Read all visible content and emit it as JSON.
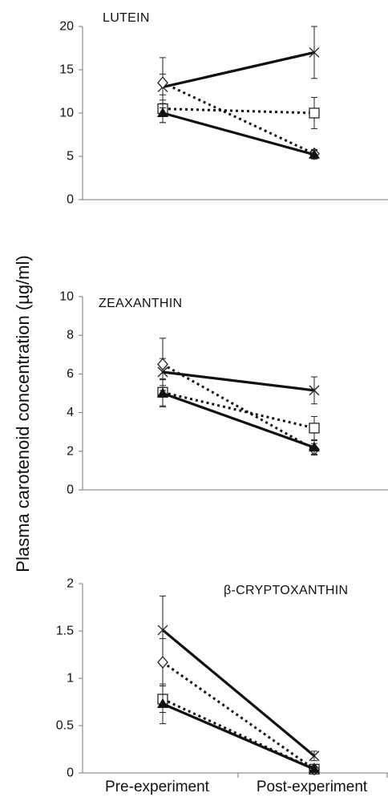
{
  "chart_data": {
    "type": "line",
    "ylabel": "Plasma carotenoid concentration (µg/ml)",
    "categories": [
      "Pre-experiment",
      "Post-experiment"
    ],
    "marker_styles": [
      {
        "marker": "cross",
        "line": "solid"
      },
      {
        "marker": "square-open",
        "line": "dotted"
      },
      {
        "marker": "diamond-open",
        "line": "dotted"
      },
      {
        "marker": "triangle-filled",
        "line": "solid"
      }
    ],
    "panels": [
      {
        "title": "LUTEIN",
        "ylim": [
          0,
          20
        ],
        "yticks": [
          "0",
          "5",
          "10",
          "15",
          "20"
        ],
        "series": [
          {
            "values": [
              13.0,
              17.0
            ],
            "errors": [
              1.5,
              3.0
            ]
          },
          {
            "values": [
              10.5,
              10.0
            ],
            "errors": [
              1.6,
              1.8
            ]
          },
          {
            "values": [
              13.5,
              5.3
            ],
            "errors": [
              2.9,
              0.5
            ]
          },
          {
            "values": [
              10.0,
              5.2
            ],
            "errors": [
              1.1,
              0.5
            ]
          }
        ]
      },
      {
        "title": "ZEAXANTHIN",
        "ylim": [
          0,
          10
        ],
        "yticks": [
          "0",
          "2",
          "4",
          "6",
          "8",
          "10"
        ],
        "series": [
          {
            "values": [
              6.1,
              5.15
            ],
            "errors": [
              0.7,
              0.7
            ]
          },
          {
            "values": [
              5.05,
              3.2
            ],
            "errors": [
              0.7,
              0.6
            ]
          },
          {
            "values": [
              6.5,
              2.1
            ],
            "errors": [
              1.35,
              0.3
            ]
          },
          {
            "values": [
              5.0,
              2.2
            ],
            "errors": [
              0.7,
              0.35
            ]
          }
        ]
      },
      {
        "title": "β-CRYPTOXANTHIN",
        "ylim": [
          0,
          2
        ],
        "yticks": [
          "0",
          "0.5",
          "1",
          "1.5",
          "2"
        ],
        "series": [
          {
            "values": [
              1.51,
              0.18
            ],
            "errors": [
              0.36,
              0.05
            ]
          },
          {
            "values": [
              0.78,
              0.04
            ],
            "errors": [
              0.14,
              0.02
            ]
          },
          {
            "values": [
              1.17,
              0.04
            ],
            "errors": [
              0.25,
              0.02
            ]
          },
          {
            "values": [
              0.73,
              0.04
            ],
            "errors": [
              0.21,
              0.02
            ]
          }
        ]
      }
    ]
  }
}
